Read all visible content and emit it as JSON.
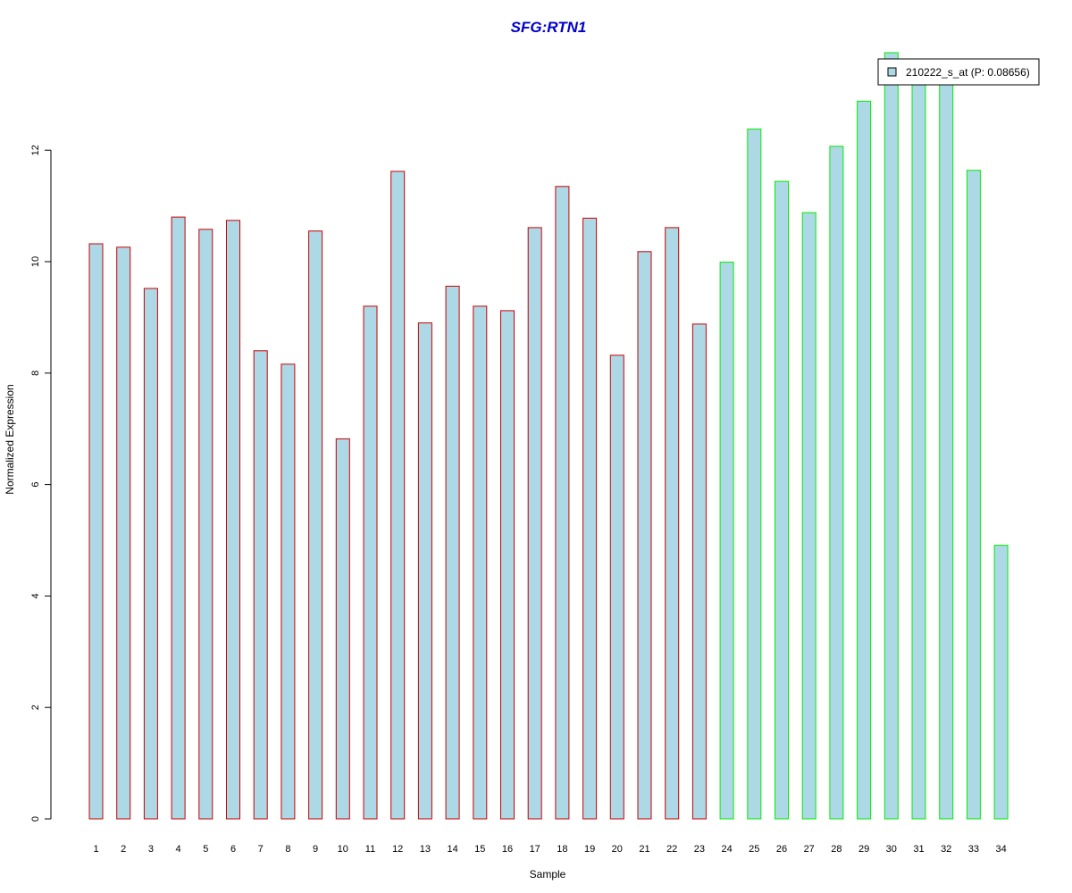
{
  "chart_data": {
    "type": "bar",
    "title": "SFG:RTN1",
    "xlabel": "Sample",
    "ylabel": "Normalized Expression",
    "categories": [
      "1",
      "2",
      "3",
      "4",
      "5",
      "6",
      "7",
      "8",
      "9",
      "10",
      "11",
      "12",
      "13",
      "14",
      "15",
      "16",
      "17",
      "18",
      "19",
      "20",
      "21",
      "22",
      "23",
      "24",
      "25",
      "26",
      "27",
      "28",
      "29",
      "30",
      "31",
      "32",
      "33",
      "34"
    ],
    "series": [
      {
        "name": "210222_s_at (P: 0.08656)",
        "values": [
          10.32,
          10.26,
          9.52,
          10.8,
          10.58,
          10.74,
          8.4,
          8.16,
          10.55,
          6.82,
          9.2,
          11.62,
          8.9,
          9.56,
          9.2,
          9.12,
          10.61,
          11.35,
          10.78,
          8.32,
          10.18,
          10.61,
          8.88,
          9.99,
          12.38,
          11.44,
          10.88,
          12.07,
          12.88,
          13.75,
          13.4,
          13.3,
          11.64,
          4.91
        ]
      }
    ],
    "bar_fill": "#add8e6",
    "group_border_colors": {
      "group1": "#cc0000",
      "group2": "#00ee00"
    },
    "group_split_after": 23,
    "yticks": [
      0,
      2,
      4,
      6,
      8,
      10,
      12
    ],
    "ylim": [
      0,
      14
    ],
    "legend_position": "top-right"
  }
}
